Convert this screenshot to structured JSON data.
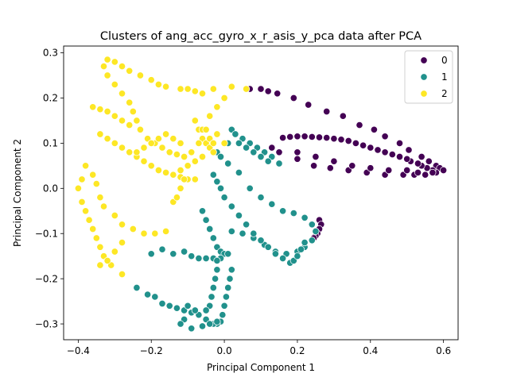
{
  "chart_data": {
    "type": "scatter",
    "title": "Clusters of ang_acc_gyro_x_r_asis_y_pca data after PCA",
    "xlabel": "Principal Component 1",
    "ylabel": "Principal Component 2",
    "xlim": [
      -0.44,
      0.64
    ],
    "ylim": [
      -0.335,
      0.315
    ],
    "xticks": [
      -0.4,
      -0.2,
      0.0,
      0.2,
      0.4,
      0.6
    ],
    "yticks": [
      -0.3,
      -0.2,
      -0.1,
      0.0,
      0.1,
      0.2,
      0.3
    ],
    "xtick_labels": [
      "−0.4",
      "−0.2",
      "0.0",
      "0.2",
      "0.4",
      "0.6"
    ],
    "ytick_labels": [
      "−0.3",
      "−0.2",
      "−0.1",
      "0.0",
      "0.1",
      "0.2",
      "0.3"
    ],
    "grid": false,
    "legend_position": "upper-right",
    "series": [
      {
        "name": "0",
        "color": "#440154",
        "points": [
          [
            0.07,
            0.22
          ],
          [
            0.1,
            0.22
          ],
          [
            0.12,
            0.215
          ],
          [
            0.145,
            0.21
          ],
          [
            0.19,
            0.2
          ],
          [
            0.23,
            0.185
          ],
          [
            0.28,
            0.17
          ],
          [
            0.325,
            0.16
          ],
          [
            0.37,
            0.14
          ],
          [
            0.41,
            0.13
          ],
          [
            0.44,
            0.115
          ],
          [
            0.48,
            0.1
          ],
          [
            0.505,
            0.085
          ],
          [
            0.54,
            0.07
          ],
          [
            0.56,
            0.06
          ],
          [
            0.58,
            0.05
          ],
          [
            0.59,
            0.045
          ],
          [
            0.6,
            0.04
          ],
          [
            0.58,
            0.035
          ],
          [
            0.57,
            0.04
          ],
          [
            0.555,
            0.045
          ],
          [
            0.54,
            0.05
          ],
          [
            0.53,
            0.055
          ],
          [
            0.51,
            0.06
          ],
          [
            0.5,
            0.065
          ],
          [
            0.48,
            0.07
          ],
          [
            0.46,
            0.075
          ],
          [
            0.44,
            0.08
          ],
          [
            0.42,
            0.085
          ],
          [
            0.4,
            0.09
          ],
          [
            0.38,
            0.095
          ],
          [
            0.36,
            0.1
          ],
          [
            0.34,
            0.105
          ],
          [
            0.32,
            0.108
          ],
          [
            0.3,
            0.11
          ],
          [
            0.28,
            0.112
          ],
          [
            0.26,
            0.113
          ],
          [
            0.24,
            0.114
          ],
          [
            0.22,
            0.115
          ],
          [
            0.2,
            0.115
          ],
          [
            0.18,
            0.114
          ],
          [
            0.16,
            0.112
          ],
          [
            0.13,
            0.09
          ],
          [
            0.15,
            0.08
          ],
          [
            0.2,
            0.065
          ],
          [
            0.245,
            0.05
          ],
          [
            0.29,
            0.045
          ],
          [
            0.34,
            0.04
          ],
          [
            0.39,
            0.035
          ],
          [
            0.44,
            0.03
          ],
          [
            0.49,
            0.03
          ],
          [
            0.52,
            0.03
          ],
          [
            0.55,
            0.03
          ],
          [
            0.57,
            0.035
          ],
          [
            0.2,
            0.08
          ],
          [
            0.25,
            0.07
          ],
          [
            0.3,
            0.06
          ],
          [
            0.35,
            0.05
          ],
          [
            0.4,
            0.045
          ],
          [
            0.45,
            0.04
          ],
          [
            0.5,
            0.04
          ],
          [
            0.53,
            0.035
          ],
          [
            0.26,
            -0.07
          ],
          [
            0.265,
            -0.08
          ],
          [
            0.26,
            -0.09
          ],
          [
            0.255,
            -0.1
          ],
          [
            0.25,
            -0.105
          ],
          [
            0.245,
            -0.11
          ],
          [
            0.24,
            -0.115
          ]
        ]
      },
      {
        "name": "1",
        "color": "#21918c",
        "points": [
          [
            0.02,
            0.13
          ],
          [
            0.03,
            0.12
          ],
          [
            0.05,
            0.11
          ],
          [
            0.07,
            0.1
          ],
          [
            0.09,
            0.09
          ],
          [
            0.11,
            0.08
          ],
          [
            0.13,
            0.07
          ],
          [
            0.15,
            0.055
          ],
          [
            0.01,
            0.1
          ],
          [
            0.04,
            0.1
          ],
          [
            0.06,
            0.09
          ],
          [
            0.08,
            0.08
          ],
          [
            0.1,
            0.07
          ],
          [
            0.12,
            0.06
          ],
          [
            -0.02,
            0.08
          ],
          [
            -0.01,
            0.07
          ],
          [
            0.01,
            0.055
          ],
          [
            0.04,
            0.035
          ],
          [
            0.07,
            0.0
          ],
          [
            0.1,
            -0.02
          ],
          [
            0.13,
            -0.035
          ],
          [
            0.16,
            -0.05
          ],
          [
            0.19,
            -0.055
          ],
          [
            0.22,
            -0.065
          ],
          [
            0.24,
            -0.08
          ],
          [
            0.25,
            -0.095
          ],
          [
            0.24,
            -0.115
          ],
          [
            0.22,
            -0.13
          ],
          [
            0.2,
            -0.14
          ],
          [
            0.17,
            -0.145
          ],
          [
            0.14,
            -0.14
          ],
          [
            0.11,
            -0.125
          ],
          [
            0.08,
            -0.11
          ],
          [
            0.05,
            -0.1
          ],
          [
            0.02,
            -0.095
          ],
          [
            -0.03,
            0.03
          ],
          [
            -0.02,
            0.015
          ],
          [
            -0.01,
            0.0
          ],
          [
            0.0,
            -0.02
          ],
          [
            0.02,
            -0.04
          ],
          [
            0.04,
            -0.06
          ],
          [
            0.06,
            -0.08
          ],
          [
            0.08,
            -0.1
          ],
          [
            0.1,
            -0.115
          ],
          [
            0.12,
            -0.13
          ],
          [
            0.14,
            -0.145
          ],
          [
            0.16,
            -0.155
          ],
          [
            0.18,
            -0.165
          ],
          [
            0.19,
            -0.16
          ],
          [
            0.2,
            -0.15
          ],
          [
            0.21,
            -0.135
          ],
          [
            0.22,
            -0.12
          ],
          [
            -0.06,
            -0.05
          ],
          [
            -0.05,
            -0.07
          ],
          [
            -0.04,
            -0.09
          ],
          [
            -0.03,
            -0.11
          ],
          [
            -0.02,
            -0.13
          ],
          [
            -0.01,
            -0.14
          ],
          [
            0.0,
            -0.145
          ],
          [
            0.01,
            -0.145
          ],
          [
            -0.01,
            -0.155
          ],
          [
            -0.03,
            -0.155
          ],
          [
            -0.05,
            -0.155
          ],
          [
            -0.07,
            -0.155
          ],
          [
            -0.09,
            -0.15
          ],
          [
            -0.11,
            -0.14
          ],
          [
            -0.14,
            -0.145
          ],
          [
            -0.17,
            -0.135
          ],
          [
            -0.2,
            -0.145
          ],
          [
            0.02,
            -0.18
          ],
          [
            0.015,
            -0.2
          ],
          [
            0.01,
            -0.22
          ],
          [
            0.005,
            -0.24
          ],
          [
            0.0,
            -0.26
          ],
          [
            -0.005,
            -0.28
          ],
          [
            -0.01,
            -0.295
          ],
          [
            -0.02,
            -0.3
          ],
          [
            -0.03,
            -0.3
          ],
          [
            -0.05,
            -0.29
          ],
          [
            -0.07,
            -0.28
          ],
          [
            -0.09,
            -0.275
          ],
          [
            -0.11,
            -0.27
          ],
          [
            -0.13,
            -0.265
          ],
          [
            -0.15,
            -0.26
          ],
          [
            -0.17,
            -0.255
          ],
          [
            -0.19,
            -0.24
          ],
          [
            -0.21,
            -0.235
          ],
          [
            -0.24,
            -0.22
          ],
          [
            -0.02,
            -0.16
          ],
          [
            -0.02,
            -0.18
          ],
          [
            -0.025,
            -0.2
          ],
          [
            -0.03,
            -0.22
          ],
          [
            -0.035,
            -0.24
          ],
          [
            -0.04,
            -0.26
          ],
          [
            -0.05,
            -0.27
          ],
          [
            -0.08,
            -0.27
          ],
          [
            -0.1,
            -0.26
          ],
          [
            -0.11,
            -0.29
          ],
          [
            -0.12,
            -0.3
          ],
          [
            -0.09,
            -0.31
          ],
          [
            -0.06,
            -0.305
          ],
          [
            -0.04,
            -0.3
          ],
          [
            -0.02,
            -0.295
          ]
        ]
      },
      {
        "name": "2",
        "color": "#fde725",
        "points": [
          [
            -0.32,
            0.285
          ],
          [
            -0.3,
            0.28
          ],
          [
            -0.28,
            0.27
          ],
          [
            -0.26,
            0.26
          ],
          [
            -0.23,
            0.25
          ],
          [
            -0.2,
            0.24
          ],
          [
            -0.18,
            0.23
          ],
          [
            -0.16,
            0.225
          ],
          [
            -0.12,
            0.22
          ],
          [
            -0.1,
            0.22
          ],
          [
            -0.08,
            0.215
          ],
          [
            -0.06,
            0.21
          ],
          [
            -0.03,
            0.22
          ],
          [
            0.02,
            0.225
          ],
          [
            0.06,
            0.22
          ],
          [
            -0.33,
            0.27
          ],
          [
            -0.32,
            0.25
          ],
          [
            -0.3,
            0.23
          ],
          [
            -0.28,
            0.21
          ],
          [
            -0.26,
            0.19
          ],
          [
            -0.25,
            0.17
          ],
          [
            -0.24,
            0.15
          ],
          [
            -0.23,
            0.13
          ],
          [
            -0.21,
            0.11
          ],
          [
            -0.19,
            0.1
          ],
          [
            -0.17,
            0.09
          ],
          [
            -0.15,
            0.08
          ],
          [
            -0.13,
            0.075
          ],
          [
            -0.11,
            0.07
          ],
          [
            -0.36,
            0.18
          ],
          [
            -0.34,
            0.175
          ],
          [
            -0.32,
            0.17
          ],
          [
            -0.3,
            0.16
          ],
          [
            -0.28,
            0.15
          ],
          [
            -0.26,
            0.14
          ],
          [
            -0.34,
            0.12
          ],
          [
            -0.32,
            0.11
          ],
          [
            -0.3,
            0.1
          ],
          [
            -0.28,
            0.09
          ],
          [
            -0.26,
            0.08
          ],
          [
            -0.24,
            0.07
          ],
          [
            -0.22,
            0.06
          ],
          [
            -0.2,
            0.05
          ],
          [
            -0.18,
            0.04
          ],
          [
            -0.16,
            0.035
          ],
          [
            -0.14,
            0.03
          ],
          [
            -0.12,
            0.025
          ],
          [
            -0.1,
            0.02
          ],
          [
            -0.08,
            0.02
          ],
          [
            -0.38,
            0.05
          ],
          [
            -0.39,
            0.02
          ],
          [
            -0.4,
            0.0
          ],
          [
            -0.39,
            -0.03
          ],
          [
            -0.38,
            -0.05
          ],
          [
            -0.37,
            -0.07
          ],
          [
            -0.36,
            -0.09
          ],
          [
            -0.35,
            -0.11
          ],
          [
            -0.34,
            -0.13
          ],
          [
            -0.33,
            -0.15
          ],
          [
            -0.31,
            -0.17
          ],
          [
            -0.28,
            -0.19
          ],
          [
            -0.36,
            0.03
          ],
          [
            -0.35,
            0.01
          ],
          [
            -0.34,
            -0.02
          ],
          [
            -0.33,
            -0.04
          ],
          [
            -0.3,
            -0.06
          ],
          [
            -0.28,
            -0.08
          ],
          [
            -0.25,
            -0.09
          ],
          [
            -0.22,
            -0.1
          ],
          [
            -0.19,
            -0.1
          ],
          [
            -0.16,
            -0.095
          ],
          [
            -0.28,
            -0.12
          ],
          [
            -0.3,
            -0.14
          ],
          [
            -0.32,
            -0.16
          ],
          [
            -0.34,
            -0.17
          ],
          [
            -0.08,
            0.15
          ],
          [
            -0.07,
            0.13
          ],
          [
            -0.06,
            0.11
          ],
          [
            -0.05,
            0.1
          ],
          [
            -0.04,
            0.09
          ],
          [
            -0.03,
            0.08
          ],
          [
            -0.06,
            0.07
          ],
          [
            -0.08,
            0.06
          ],
          [
            -0.1,
            0.05
          ],
          [
            -0.12,
            0.04
          ],
          [
            -0.14,
            -0.03
          ],
          [
            -0.13,
            -0.02
          ],
          [
            -0.12,
            0.0
          ],
          [
            -0.11,
            0.02
          ],
          [
            -0.1,
            0.05
          ],
          [
            -0.09,
            0.08
          ],
          [
            -0.07,
            0.1
          ],
          [
            -0.06,
            0.13
          ],
          [
            -0.04,
            0.16
          ],
          [
            -0.02,
            0.18
          ],
          [
            0.0,
            0.2
          ],
          [
            -0.24,
            0.08
          ],
          [
            -0.22,
            0.09
          ],
          [
            -0.2,
            0.1
          ],
          [
            -0.18,
            0.11
          ],
          [
            -0.16,
            0.12
          ],
          [
            -0.14,
            0.11
          ],
          [
            -0.12,
            0.1
          ],
          [
            -0.05,
            0.13
          ],
          [
            -0.04,
            0.11
          ],
          [
            -0.03,
            0.1
          ],
          [
            0.0,
            0.1
          ],
          [
            -0.02,
            0.12
          ]
        ]
      }
    ]
  }
}
